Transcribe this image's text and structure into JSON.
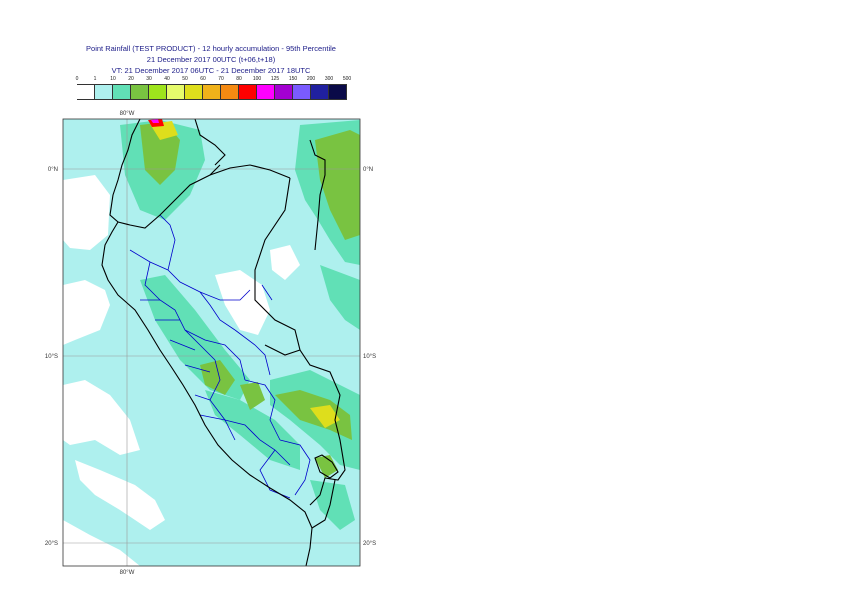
{
  "header": {
    "line1": "Point Rainfall (TEST PRODUCT) - 12 hourly accumulation - 95th Percentile",
    "line2": "21 December 2017 00UTC (t+06,t+18)",
    "line3": "VT: 21 December 2017 06UTC - 21 December 2017 18UTC"
  },
  "legend": {
    "labels": [
      "0",
      "1",
      "10",
      "20",
      "30",
      "40",
      "50",
      "60",
      "70",
      "80",
      "100",
      "125",
      "150",
      "200",
      "300",
      "500"
    ],
    "colors": [
      "#ffffff",
      "#aef0ee",
      "#61e0b6",
      "#79c341",
      "#9ee41c",
      "#e6fb6c",
      "#dede1c",
      "#f0b21a",
      "#f58a12",
      "#ff0000",
      "#ff00ff",
      "#a300d1",
      "#7a5bff",
      "#2020a0",
      "#0a0a48"
    ]
  },
  "map": {
    "lat_labels_left": [
      "0°N",
      "10°S",
      "20°S"
    ],
    "lat_labels_right": [
      "0°N",
      "10°S",
      "20°S"
    ],
    "lon_label_top": "80°W",
    "lon_label_bottom": "80°W",
    "colors": {
      "background": "#aef0ee",
      "light": "#ffffff",
      "moderate": "#61e0b6",
      "heavy": "#79c341",
      "heavier": "#9ee41c",
      "yellow": "#dede1c",
      "red": "#ff0000",
      "magenta": "#ff00ff",
      "coast": "#000000",
      "regions": "#0000cc"
    }
  }
}
